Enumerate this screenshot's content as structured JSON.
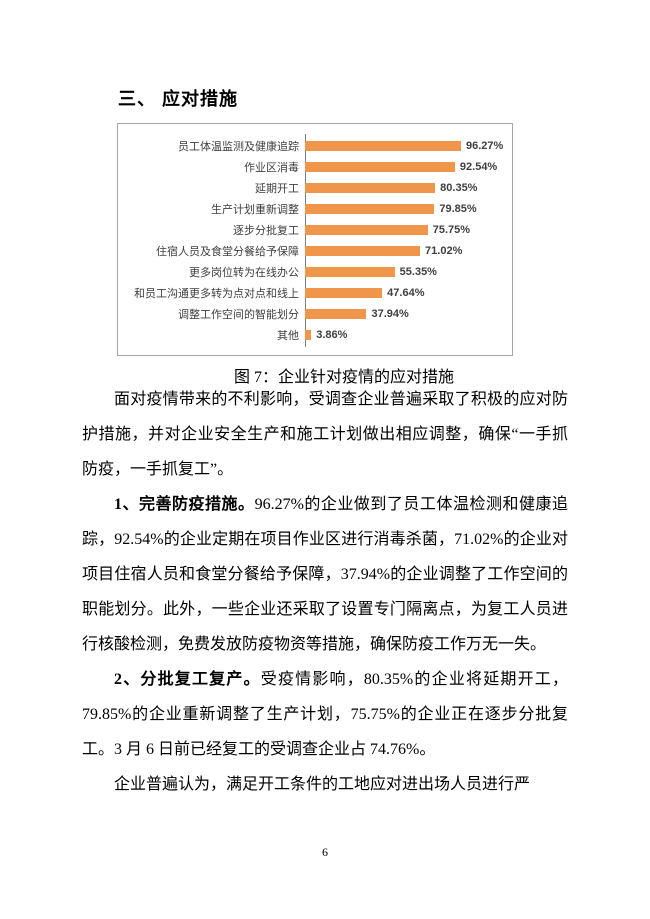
{
  "document": {
    "section_heading": "三、 应对措施",
    "figure_caption": "图 7：企业针对疫情的应对措施",
    "page_number": "6"
  },
  "chart_data": {
    "type": "bar",
    "orientation": "horizontal",
    "title": "",
    "xlabel": "",
    "ylabel": "",
    "xlim": [
      0,
      100
    ],
    "grid": false,
    "legend": false,
    "bar_color": "#F0964A",
    "categories": [
      "员工体温监测及健康追踪",
      "作业区消毒",
      "延期开工",
      "生产计划重新调整",
      "逐步分批复工",
      "住宿人员及食堂分餐给予保障",
      "更多岗位转为在线办公",
      "和员工沟通更多转为点对点和线上",
      "调整工作空间的智能划分",
      "其他"
    ],
    "values": [
      96.27,
      92.54,
      80.35,
      79.85,
      75.75,
      71.02,
      55.35,
      47.64,
      37.94,
      3.86
    ],
    "value_labels": [
      "96.27%",
      "92.54%",
      "80.35%",
      "79.85%",
      "75.75%",
      "71.02%",
      "55.35%",
      "47.64%",
      "37.94%",
      "3.86%"
    ]
  },
  "body": {
    "paragraphs": [
      {
        "runs": [
          {
            "text": "面对疫情带来的不利影响，受调查企业普遍采取了积极的应对防护措施，并对企业安全生产和施工计划做出相应调整，确保“一手抓防疫，一手抓复工”。",
            "bold": false
          }
        ]
      },
      {
        "runs": [
          {
            "text": "1、完善防疫措施。",
            "bold": true
          },
          {
            "text": "96.27%的企业做到了员工体温检测和健康追踪，92.54%的企业定期在项目作业区进行消毒杀菌，71.02%的企业对项目住宿人员和食堂分餐给予保障，37.94%的企业调整了工作空间的职能划分。此外，一些企业还采取了设置专门隔离点，为复工人员进行核酸检测，免费发放防疫物资等措施，确保防疫工作万无一失。",
            "bold": false
          }
        ]
      },
      {
        "runs": [
          {
            "text": "2、分批复工复产。",
            "bold": true
          },
          {
            "text": "受疫情影响，80.35%的企业将延期开工，79.85%的企业重新调整了生产计划，75.75%的企业正在逐步分批复工。3 月 6 日前已经复工的受调查企业占 74.76%。",
            "bold": false
          }
        ]
      },
      {
        "runs": [
          {
            "text": "企业普遍认为，满足开工条件的工地应对进出场人员进行严",
            "bold": false
          }
        ]
      }
    ]
  },
  "colors": {
    "bar": "#F0964A",
    "value_label": "#404040",
    "category_label": "#3F3F3F",
    "chart_border": "#A6A6A6",
    "axis_line": "#808080",
    "text": "#000000",
    "page_background": "#FFFFFF"
  }
}
